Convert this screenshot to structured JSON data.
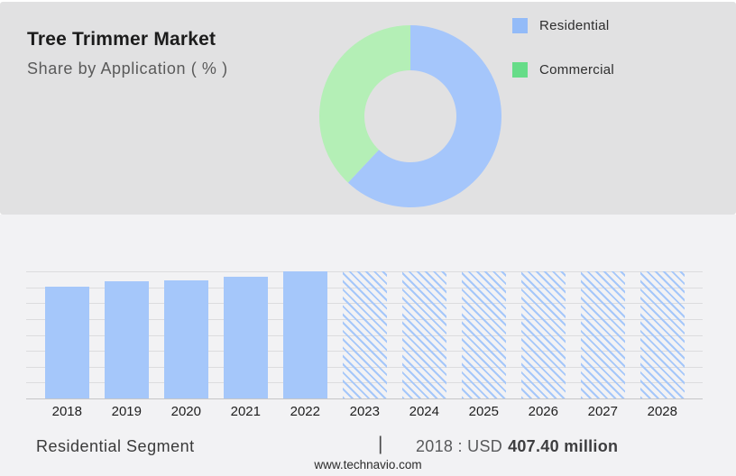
{
  "header": {
    "title": "Tree Trimmer Market",
    "subtitle": "Share by Application ( % )"
  },
  "legend": {
    "items": [
      {
        "label": "Residential",
        "color": "#93bbf8"
      },
      {
        "label": "Commercial",
        "color": "#66dc88"
      }
    ]
  },
  "chart_data": [
    {
      "type": "pie",
      "subtype": "donut",
      "title": "Share by Application ( % )",
      "labels": [
        "Residential",
        "Commercial"
      ],
      "values": [
        62,
        38
      ],
      "colors": [
        "#a5c6fb",
        "#b4efb6"
      ],
      "start_angle_deg": 0,
      "direction": "clockwise",
      "inner_radius_ratio": 0.5,
      "legend_position": "right"
    },
    {
      "type": "bar",
      "categories": [
        "2018",
        "2019",
        "2020",
        "2021",
        "2022",
        "2023",
        "2024",
        "2025",
        "2026",
        "2027",
        "2028"
      ],
      "series": [
        {
          "name": "Residential segment size (USD million)",
          "values": [
            407.4,
            426,
            429,
            443,
            462,
            null,
            null,
            null,
            null,
            null,
            null
          ]
        }
      ],
      "forecast_years": [
        "2023",
        "2024",
        "2025",
        "2026",
        "2027",
        "2028"
      ],
      "forecast_style": "diagonal-hatch-placeholder-full-height",
      "bar_color": "#a5c7fa",
      "ylim": [
        0,
        462
      ],
      "y_axis_labels": false,
      "gridline_count": 9,
      "grid": true
    }
  ],
  "footer": {
    "segment_label": "Residential Segment",
    "separator": "|",
    "value_prefix": "2018 : USD",
    "value_bold": "407.40 million",
    "website": "www.technavio.com"
  }
}
